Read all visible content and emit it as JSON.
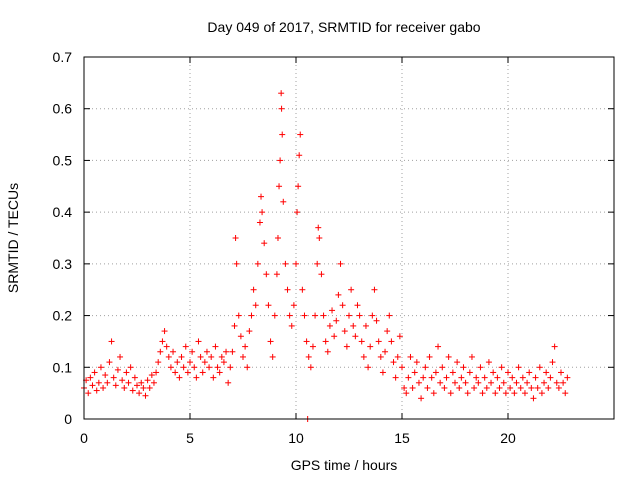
{
  "chart_data": {
    "type": "scatter",
    "title": "Day 049 of 2017, SRMTID for receiver gabo",
    "xlabel": "GPS time / hours",
    "ylabel": "SRMTID / TECUs",
    "xlim": [
      0,
      25
    ],
    "ylim": [
      0,
      0.7
    ],
    "xticks": [
      0,
      5,
      10,
      15,
      20
    ],
    "yticks": [
      0,
      0.1,
      0.2,
      0.3,
      0.4,
      0.5,
      0.6,
      0.7
    ],
    "xtick_labels": [
      "0",
      "5",
      "10",
      "15",
      "20"
    ],
    "ytick_labels": [
      "0",
      "0.1",
      "0.2",
      "0.3",
      "0.4",
      "0.5",
      "0.6",
      "0.7"
    ],
    "grid": true,
    "marker": "+",
    "color": "#ff0000",
    "series": [
      {
        "name": "SRMTID",
        "points": [
          [
            0.0,
            0.06
          ],
          [
            0.1,
            0.075
          ],
          [
            0.2,
            0.05
          ],
          [
            0.3,
            0.08
          ],
          [
            0.4,
            0.065
          ],
          [
            0.5,
            0.09
          ],
          [
            0.6,
            0.055
          ],
          [
            0.7,
            0.07
          ],
          [
            0.8,
            0.1
          ],
          [
            0.9,
            0.06
          ],
          [
            1.0,
            0.085
          ],
          [
            1.1,
            0.07
          ],
          [
            1.2,
            0.11
          ],
          [
            1.3,
            0.15
          ],
          [
            1.4,
            0.08
          ],
          [
            1.5,
            0.065
          ],
          [
            1.6,
            0.095
          ],
          [
            1.7,
            0.12
          ],
          [
            1.8,
            0.075
          ],
          [
            1.9,
            0.06
          ],
          [
            2.0,
            0.09
          ],
          [
            2.1,
            0.07
          ],
          [
            2.2,
            0.1
          ],
          [
            2.3,
            0.055
          ],
          [
            2.4,
            0.08
          ],
          [
            2.5,
            0.065
          ],
          [
            2.6,
            0.05
          ],
          [
            2.7,
            0.07
          ],
          [
            2.8,
            0.06
          ],
          [
            2.9,
            0.045
          ],
          [
            3.0,
            0.075
          ],
          [
            3.1,
            0.06
          ],
          [
            3.2,
            0.085
          ],
          [
            3.3,
            0.07
          ],
          [
            3.4,
            0.09
          ],
          [
            3.5,
            0.11
          ],
          [
            3.6,
            0.13
          ],
          [
            3.7,
            0.15
          ],
          [
            3.8,
            0.17
          ],
          [
            3.9,
            0.14
          ],
          [
            4.0,
            0.12
          ],
          [
            4.1,
            0.1
          ],
          [
            4.2,
            0.13
          ],
          [
            4.3,
            0.09
          ],
          [
            4.4,
            0.11
          ],
          [
            4.5,
            0.08
          ],
          [
            4.6,
            0.12
          ],
          [
            4.7,
            0.1
          ],
          [
            4.8,
            0.14
          ],
          [
            4.9,
            0.09
          ],
          [
            5.0,
            0.11
          ],
          [
            5.1,
            0.13
          ],
          [
            5.2,
            0.1
          ],
          [
            5.3,
            0.08
          ],
          [
            5.4,
            0.15
          ],
          [
            5.5,
            0.12
          ],
          [
            5.6,
            0.09
          ],
          [
            5.7,
            0.11
          ],
          [
            5.8,
            0.13
          ],
          [
            5.9,
            0.1
          ],
          [
            6.0,
            0.12
          ],
          [
            6.1,
            0.08
          ],
          [
            6.2,
            0.14
          ],
          [
            6.3,
            0.1
          ],
          [
            6.4,
            0.09
          ],
          [
            6.5,
            0.12
          ],
          [
            6.6,
            0.11
          ],
          [
            6.7,
            0.13
          ],
          [
            6.8,
            0.07
          ],
          [
            6.9,
            0.1
          ],
          [
            7.0,
            0.13
          ],
          [
            7.1,
            0.18
          ],
          [
            7.15,
            0.35
          ],
          [
            7.2,
            0.3
          ],
          [
            7.3,
            0.2
          ],
          [
            7.4,
            0.16
          ],
          [
            7.5,
            0.12
          ],
          [
            7.6,
            0.14
          ],
          [
            7.7,
            0.1
          ],
          [
            7.8,
            0.17
          ],
          [
            7.9,
            0.2
          ],
          [
            8.0,
            0.25
          ],
          [
            8.1,
            0.22
          ],
          [
            8.2,
            0.3
          ],
          [
            8.3,
            0.38
          ],
          [
            8.35,
            0.43
          ],
          [
            8.4,
            0.4
          ],
          [
            8.5,
            0.34
          ],
          [
            8.6,
            0.28
          ],
          [
            8.7,
            0.22
          ],
          [
            8.8,
            0.15
          ],
          [
            8.9,
            0.12
          ],
          [
            9.0,
            0.2
          ],
          [
            9.1,
            0.28
          ],
          [
            9.15,
            0.35
          ],
          [
            9.2,
            0.45
          ],
          [
            9.25,
            0.5
          ],
          [
            9.3,
            0.63
          ],
          [
            9.32,
            0.6
          ],
          [
            9.35,
            0.55
          ],
          [
            9.4,
            0.42
          ],
          [
            9.5,
            0.3
          ],
          [
            9.6,
            0.25
          ],
          [
            9.7,
            0.2
          ],
          [
            9.8,
            0.18
          ],
          [
            9.9,
            0.22
          ],
          [
            10.0,
            0.3
          ],
          [
            10.05,
            0.4
          ],
          [
            10.1,
            0.45
          ],
          [
            10.15,
            0.51
          ],
          [
            10.2,
            0.55
          ],
          [
            10.3,
            0.25
          ],
          [
            10.4,
            0.2
          ],
          [
            10.5,
            0.15
          ],
          [
            10.6,
            0.12
          ],
          [
            10.7,
            0.1
          ],
          [
            10.8,
            0.14
          ],
          [
            10.9,
            0.2
          ],
          [
            11.0,
            0.3
          ],
          [
            11.05,
            0.37
          ],
          [
            11.1,
            0.35
          ],
          [
            11.2,
            0.28
          ],
          [
            11.3,
            0.2
          ],
          [
            11.4,
            0.15
          ],
          [
            11.5,
            0.13
          ],
          [
            11.6,
            0.18
          ],
          [
            11.7,
            0.21
          ],
          [
            11.8,
            0.16
          ],
          [
            11.9,
            0.19
          ],
          [
            12.0,
            0.24
          ],
          [
            12.1,
            0.3
          ],
          [
            12.2,
            0.22
          ],
          [
            12.3,
            0.17
          ],
          [
            12.4,
            0.14
          ],
          [
            12.5,
            0.2
          ],
          [
            12.6,
            0.25
          ],
          [
            12.7,
            0.18
          ],
          [
            12.8,
            0.16
          ],
          [
            12.9,
            0.22
          ],
          [
            13.0,
            0.2
          ],
          [
            13.1,
            0.15
          ],
          [
            13.2,
            0.12
          ],
          [
            13.3,
            0.18
          ],
          [
            13.4,
            0.1
          ],
          [
            13.5,
            0.14
          ],
          [
            13.6,
            0.2
          ],
          [
            13.7,
            0.25
          ],
          [
            13.8,
            0.19
          ],
          [
            13.9,
            0.15
          ],
          [
            14.0,
            0.12
          ],
          [
            14.1,
            0.09
          ],
          [
            14.2,
            0.13
          ],
          [
            14.3,
            0.17
          ],
          [
            14.4,
            0.2
          ],
          [
            14.5,
            0.15
          ],
          [
            14.6,
            0.11
          ],
          [
            14.7,
            0.08
          ],
          [
            14.8,
            0.12
          ],
          [
            14.9,
            0.16
          ],
          [
            15.0,
            0.1
          ],
          [
            15.1,
            0.06
          ],
          [
            15.2,
            0.05
          ],
          [
            15.3,
            0.08
          ],
          [
            15.4,
            0.12
          ],
          [
            15.5,
            0.06
          ],
          [
            15.6,
            0.09
          ],
          [
            15.7,
            0.11
          ],
          [
            15.8,
            0.07
          ],
          [
            15.9,
            0.04
          ],
          [
            16.0,
            0.08
          ],
          [
            16.1,
            0.1
          ],
          [
            16.2,
            0.06
          ],
          [
            16.3,
            0.12
          ],
          [
            16.4,
            0.08
          ],
          [
            16.5,
            0.05
          ],
          [
            16.6,
            0.09
          ],
          [
            16.7,
            0.14
          ],
          [
            16.8,
            0.07
          ],
          [
            16.9,
            0.1
          ],
          [
            17.0,
            0.06
          ],
          [
            17.1,
            0.08
          ],
          [
            17.2,
            0.12
          ],
          [
            17.3,
            0.05
          ],
          [
            17.4,
            0.09
          ],
          [
            17.5,
            0.07
          ],
          [
            17.6,
            0.11
          ],
          [
            17.7,
            0.06
          ],
          [
            17.8,
            0.08
          ],
          [
            17.9,
            0.1
          ],
          [
            18.0,
            0.07
          ],
          [
            18.1,
            0.05
          ],
          [
            18.2,
            0.09
          ],
          [
            18.3,
            0.12
          ],
          [
            18.4,
            0.06
          ],
          [
            18.5,
            0.08
          ],
          [
            18.6,
            0.07
          ],
          [
            18.7,
            0.1
          ],
          [
            18.8,
            0.05
          ],
          [
            18.9,
            0.08
          ],
          [
            19.0,
            0.06
          ],
          [
            19.1,
            0.11
          ],
          [
            19.2,
            0.07
          ],
          [
            19.3,
            0.09
          ],
          [
            19.4,
            0.05
          ],
          [
            19.5,
            0.08
          ],
          [
            19.6,
            0.06
          ],
          [
            19.7,
            0.1
          ],
          [
            19.8,
            0.07
          ],
          [
            19.9,
            0.05
          ],
          [
            20.0,
            0.09
          ],
          [
            20.1,
            0.06
          ],
          [
            20.2,
            0.08
          ],
          [
            20.3,
            0.05
          ],
          [
            20.4,
            0.07
          ],
          [
            20.5,
            0.1
          ],
          [
            20.6,
            0.06
          ],
          [
            20.7,
            0.08
          ],
          [
            20.8,
            0.05
          ],
          [
            20.9,
            0.07
          ],
          [
            21.0,
            0.09
          ],
          [
            21.1,
            0.06
          ],
          [
            21.2,
            0.04
          ],
          [
            21.3,
            0.08
          ],
          [
            21.4,
            0.06
          ],
          [
            21.5,
            0.1
          ],
          [
            21.6,
            0.05
          ],
          [
            21.7,
            0.07
          ],
          [
            21.8,
            0.09
          ],
          [
            21.9,
            0.06
          ],
          [
            22.0,
            0.08
          ],
          [
            22.1,
            0.11
          ],
          [
            22.2,
            0.14
          ],
          [
            22.3,
            0.07
          ],
          [
            22.4,
            0.06
          ],
          [
            22.5,
            0.09
          ],
          [
            22.6,
            0.07
          ],
          [
            22.7,
            0.05
          ],
          [
            22.8,
            0.08
          ],
          [
            10.55,
            0.0
          ]
        ]
      }
    ]
  }
}
